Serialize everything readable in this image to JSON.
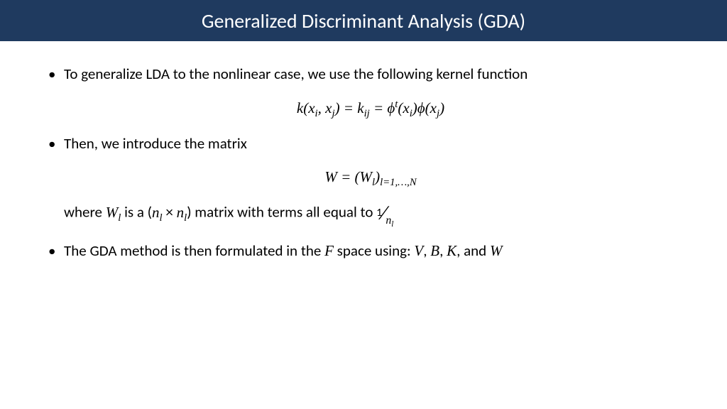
{
  "header": {
    "title": "Generalized Discriminant Analysis (GDA)",
    "background_color": "#1f3a5f",
    "text_color": "#ffffff",
    "font_size": 28
  },
  "body": {
    "background_color": "#ffffff",
    "text_color": "#000000",
    "font_size": 21,
    "bullets": [
      {
        "text": "To generalize LDA to the nonlinear case, we use the following kernel function",
        "equation_html": "<span class='math'>k</span>(<span class='math'>x<sub>i</sub></span>, <span class='math'>x<sub>j</sub></span>) = <span class='math'>k<sub>ij</sub></span> = <span class='math'>ϕ<sup>t</sup></span>(<span class='math'>x<sub>i</sub></span>)<span class='math'>ϕ</span>(<span class='math'>x<sub>j</sub></span>)"
      },
      {
        "text": "Then, we introduce the matrix",
        "equation_html": "<span class='math'>W</span> = (<span class='math'>W<sub>l</sub></span>)<sub><span class='math'>l</span>=1,…,<span class='math'>N</span></sub>",
        "sub_html": "where <span class='math'>W<sub>l</sub></span> is a (<span class='math'>n<sub>l</sub></span> × <span class='math'>n<sub>l</sub></span>) matrix with terms all equal to <span class='frac'><span class='frac-num'>1</span><span class='frac-slash'>⁄</span><span class='frac-den math'>n<sub>l</sub></span></span>"
      },
      {
        "text_html": "The GDA method is then formulated in the <span class='math'>F</span> space using: <span class='math'>V</span>, <span class='math'>B</span>, <span class='math'>K</span>, and <span class='math'>W</span>"
      }
    ]
  }
}
